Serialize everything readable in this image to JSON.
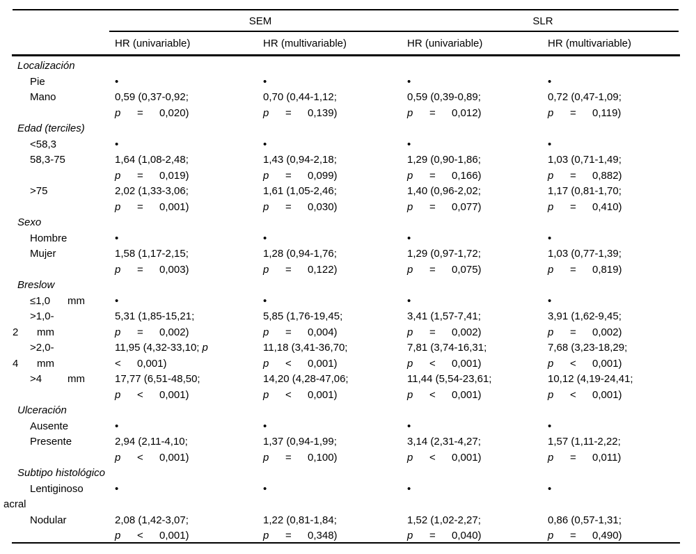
{
  "colors": {
    "background": "#ffffff",
    "text": "#000000",
    "rule": "#000000"
  },
  "table": {
    "group_headers": [
      {
        "label": "SEM"
      },
      {
        "label": "SLR"
      }
    ],
    "column_headers": [
      "HR (univariable)",
      "HR (multivariable)",
      "HR (univariable)",
      "HR (multivariable)"
    ],
    "ref_marker": "•",
    "sections": [
      {
        "title": "Localización",
        "rows": [
          {
            "label": [
              {
                "t": "Pie",
                "ind": "item"
              }
            ],
            "cells": [
              {
                "ref": true
              },
              {
                "ref": true
              },
              {
                "ref": true
              },
              {
                "ref": true
              }
            ]
          },
          {
            "label": [
              {
                "t": "Mano",
                "ind": "item"
              }
            ],
            "cells": [
              {
                "l1": "0,59 (0,37-0,92;",
                "p": [
                  "p",
                  "=",
                  "0,020)"
                ]
              },
              {
                "l1": "0,70 (0,44-1,12;",
                "p": [
                  "p",
                  "=",
                  "0,139)"
                ]
              },
              {
                "l1": "0,59 (0,39-0,89;",
                "p": [
                  "p",
                  "=",
                  "0,012)"
                ]
              },
              {
                "l1": "0,72 (0,47-1,09;",
                "p": [
                  "p",
                  "=",
                  "0,119)"
                ]
              }
            ]
          }
        ]
      },
      {
        "title": "Edad (terciles)",
        "rows": [
          {
            "label": [
              {
                "t": "<58,3",
                "ind": "item"
              }
            ],
            "cells": [
              {
                "ref": true
              },
              {
                "ref": true
              },
              {
                "ref": true
              },
              {
                "ref": true
              }
            ]
          },
          {
            "label": [
              {
                "t": "58,3-75",
                "ind": "item"
              }
            ],
            "cells": [
              {
                "l1": "1,64 (1,08-2,48;",
                "p": [
                  "p",
                  "=",
                  "0,019)"
                ]
              },
              {
                "l1": "1,43 (0,94-2,18;",
                "p": [
                  "p",
                  "=",
                  "0,099)"
                ]
              },
              {
                "l1": "1,29 (0,90-1,86;",
                "p": [
                  "p",
                  "=",
                  "0,166)"
                ]
              },
              {
                "l1": "1,03 (0,71-1,49;",
                "p": [
                  "p",
                  "=",
                  "0,882)"
                ]
              }
            ]
          },
          {
            "label": [
              {
                "t": ">75",
                "ind": "item"
              }
            ],
            "cells": [
              {
                "l1": "2,02 (1,33-3,06;",
                "p": [
                  "p",
                  "=",
                  "0,001)"
                ]
              },
              {
                "l1": "1,61 (1,05-2,46;",
                "p": [
                  "p",
                  "=",
                  "0,030)"
                ]
              },
              {
                "l1": "1,40 (0,96-2,02;",
                "p": [
                  "p",
                  "=",
                  "0,077)"
                ]
              },
              {
                "l1": "1,17 (0,81-1,70;",
                "p": [
                  "p",
                  "=",
                  "0,410)"
                ]
              }
            ]
          }
        ]
      },
      {
        "title": "Sexo",
        "rows": [
          {
            "label": [
              {
                "t": "Hombre",
                "ind": "item"
              }
            ],
            "cells": [
              {
                "ref": true
              },
              {
                "ref": true
              },
              {
                "ref": true
              },
              {
                "ref": true
              }
            ]
          },
          {
            "label": [
              {
                "t": "Mujer",
                "ind": "item"
              }
            ],
            "cells": [
              {
                "l1": "1,58 (1,17-2,15;",
                "p": [
                  "p",
                  "=",
                  "0,003)"
                ]
              },
              {
                "l1": "1,28 (0,94-1,76;",
                "p": [
                  "p",
                  "=",
                  "0,122)"
                ]
              },
              {
                "l1": "1,29 (0,97-1,72;",
                "p": [
                  "p",
                  "=",
                  "0,075)"
                ]
              },
              {
                "l1": "1,03 (0,77-1,39;",
                "p": [
                  "p",
                  "=",
                  "0,819)"
                ]
              }
            ]
          }
        ]
      },
      {
        "title": "Breslow",
        "rows": [
          {
            "label": [
              {
                "t": [
                  "≤1,0",
                  "mm"
                ],
                "ind": "item"
              }
            ],
            "cells": [
              {
                "ref": true
              },
              {
                "ref": true
              },
              {
                "ref": true
              },
              {
                "ref": true
              }
            ]
          },
          {
            "label": [
              {
                "t": ">1,0-",
                "ind": "item"
              },
              {
                "t": [
                  "2",
                  "mm"
                ],
                "ind": "cont"
              }
            ],
            "cells": [
              {
                "l1": "5,31 (1,85-15,21;",
                "p": [
                  "p",
                  "=",
                  "0,002)"
                ]
              },
              {
                "l1": "5,85 (1,76-19,45;",
                "p": [
                  "p",
                  "=",
                  "0,004)"
                ]
              },
              {
                "l1": "3,41 (1,57-7,41;",
                "p": [
                  "p",
                  "=",
                  "0,002)"
                ]
              },
              {
                "l1": "3,91 (1,62-9,45;",
                "p": [
                  "p",
                  "=",
                  "0,002)"
                ]
              }
            ]
          },
          {
            "label": [
              {
                "t": ">2,0-",
                "ind": "item"
              },
              {
                "t": [
                  "4",
                  "mm"
                ],
                "ind": "cont"
              }
            ],
            "cells": [
              {
                "l1": "11,95 (4,32-33,10;",
                "l1p": true,
                "p": [
                  "<",
                  "0,001)"
                ]
              },
              {
                "l1": "11,18 (3,41-36,70;",
                "p": [
                  "p",
                  "<",
                  "0,001)"
                ]
              },
              {
                "l1": "7,81 (3,74-16,31;",
                "p": [
                  "p",
                  "<",
                  "0,001)"
                ]
              },
              {
                "l1": "7,68 (3,23-18,29;",
                "p": [
                  "p",
                  "<",
                  "0,001)"
                ]
              }
            ]
          },
          {
            "label": [
              {
                "t": [
                  ">4",
                  "mm"
                ],
                "ind": "item"
              }
            ],
            "cells": [
              {
                "l1": "17,77 (6,51-48,50;",
                "p": [
                  "p",
                  "<",
                  "0,001)"
                ]
              },
              {
                "l1": "14,20 (4,28-47,06;",
                "p": [
                  "p",
                  "<",
                  "0,001)"
                ]
              },
              {
                "l1": "11,44 (5,54-23,61;",
                "p": [
                  "p",
                  "<",
                  "0,001)"
                ]
              },
              {
                "l1": "10,12 (4,19-24,41;",
                "p": [
                  "p",
                  "<",
                  "0,001)"
                ]
              }
            ]
          }
        ]
      },
      {
        "title": "Ulceración",
        "rows": [
          {
            "label": [
              {
                "t": "Ausente",
                "ind": "item"
              }
            ],
            "cells": [
              {
                "ref": true
              },
              {
                "ref": true
              },
              {
                "ref": true
              },
              {
                "ref": true
              }
            ]
          },
          {
            "label": [
              {
                "t": "Presente",
                "ind": "item"
              }
            ],
            "cells": [
              {
                "l1": "2,94 (2,11-4,10;",
                "p": [
                  "p",
                  "<",
                  "0,001)"
                ]
              },
              {
                "l1": "1,37 (0,94-1,99;",
                "p": [
                  "p",
                  "=",
                  "0,100)"
                ]
              },
              {
                "l1": "3,14 (2,31-4,27;",
                "p": [
                  "p",
                  "<",
                  "0,001)"
                ]
              },
              {
                "l1": "1,57 (1,11-2,22;",
                "p": [
                  "p",
                  "=",
                  "0,011)"
                ]
              }
            ]
          }
        ]
      },
      {
        "title": "Subtipo histológico",
        "rows": [
          {
            "label": [
              {
                "t": "Lentiginoso",
                "ind": "item"
              },
              {
                "t": "acral",
                "ind": "edge"
              }
            ],
            "cells": [
              {
                "ref": true
              },
              {
                "ref": true
              },
              {
                "ref": true
              },
              {
                "ref": true
              }
            ]
          },
          {
            "label": [
              {
                "t": "Nodular",
                "ind": "item"
              }
            ],
            "cells": [
              {
                "l1": "2,08 (1,42-3,07;",
                "p": [
                  "p",
                  "<",
                  "0,001)"
                ]
              },
              {
                "l1": "1,22 (0,81-1,84;",
                "p": [
                  "p",
                  "=",
                  "0,348)"
                ]
              },
              {
                "l1": "1,52 (1,02-2,27;",
                "p": [
                  "p",
                  "=",
                  "0,040)"
                ]
              },
              {
                "l1": "0,86 (0,57-1,31;",
                "p": [
                  "p",
                  "=",
                  "0,490)"
                ]
              }
            ]
          }
        ]
      }
    ]
  }
}
